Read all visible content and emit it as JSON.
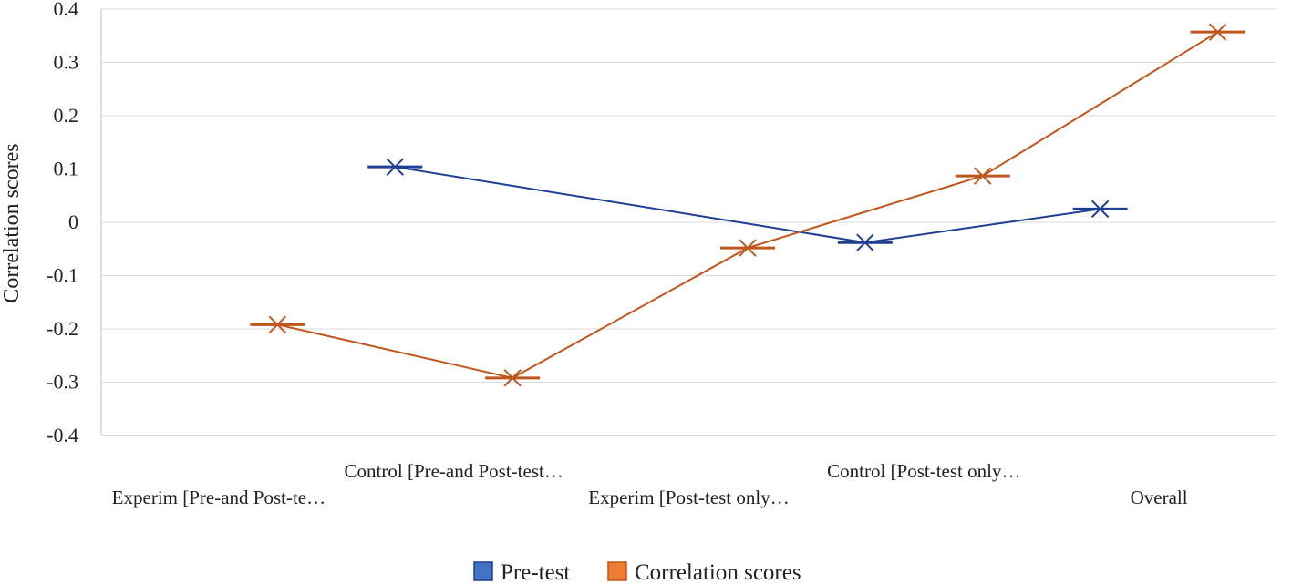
{
  "chart_data": {
    "type": "line",
    "categories": [
      "Experim [Pre-and Post-te…",
      "Control [Pre-and Post-test…",
      "Experim [Post-test only…",
      "Control [Post-test only…",
      "Overall"
    ],
    "x_positions": [
      0,
      1,
      2,
      3,
      4
    ],
    "series": [
      {
        "name": "Pre-test",
        "color": "#1f3f94",
        "x": [
          0.75,
          2.75,
          3.75
        ],
        "values": [
          0.104,
          -0.038,
          0.025
        ]
      },
      {
        "name": "Correlation scores",
        "color": "#c0561c",
        "x": [
          0.25,
          1.25,
          2.25,
          3.25,
          4.25
        ],
        "values": [
          -0.192,
          -0.292,
          -0.048,
          0.087,
          0.357
        ]
      }
    ],
    "marker": "x-with-dash",
    "ylabel": "Correlation scores",
    "xlabel": "",
    "ylim": [
      -0.4,
      0.4
    ],
    "yticks": [
      "0.4",
      "0.3",
      "0.2",
      "0.1",
      "0",
      "-0.1",
      "-0.2",
      "-0.3",
      "-0.4"
    ],
    "grid": "horizontal",
    "legend_position": "bottom",
    "legend_swatch_colors": [
      "#4472c4",
      "#ed7d31"
    ]
  }
}
